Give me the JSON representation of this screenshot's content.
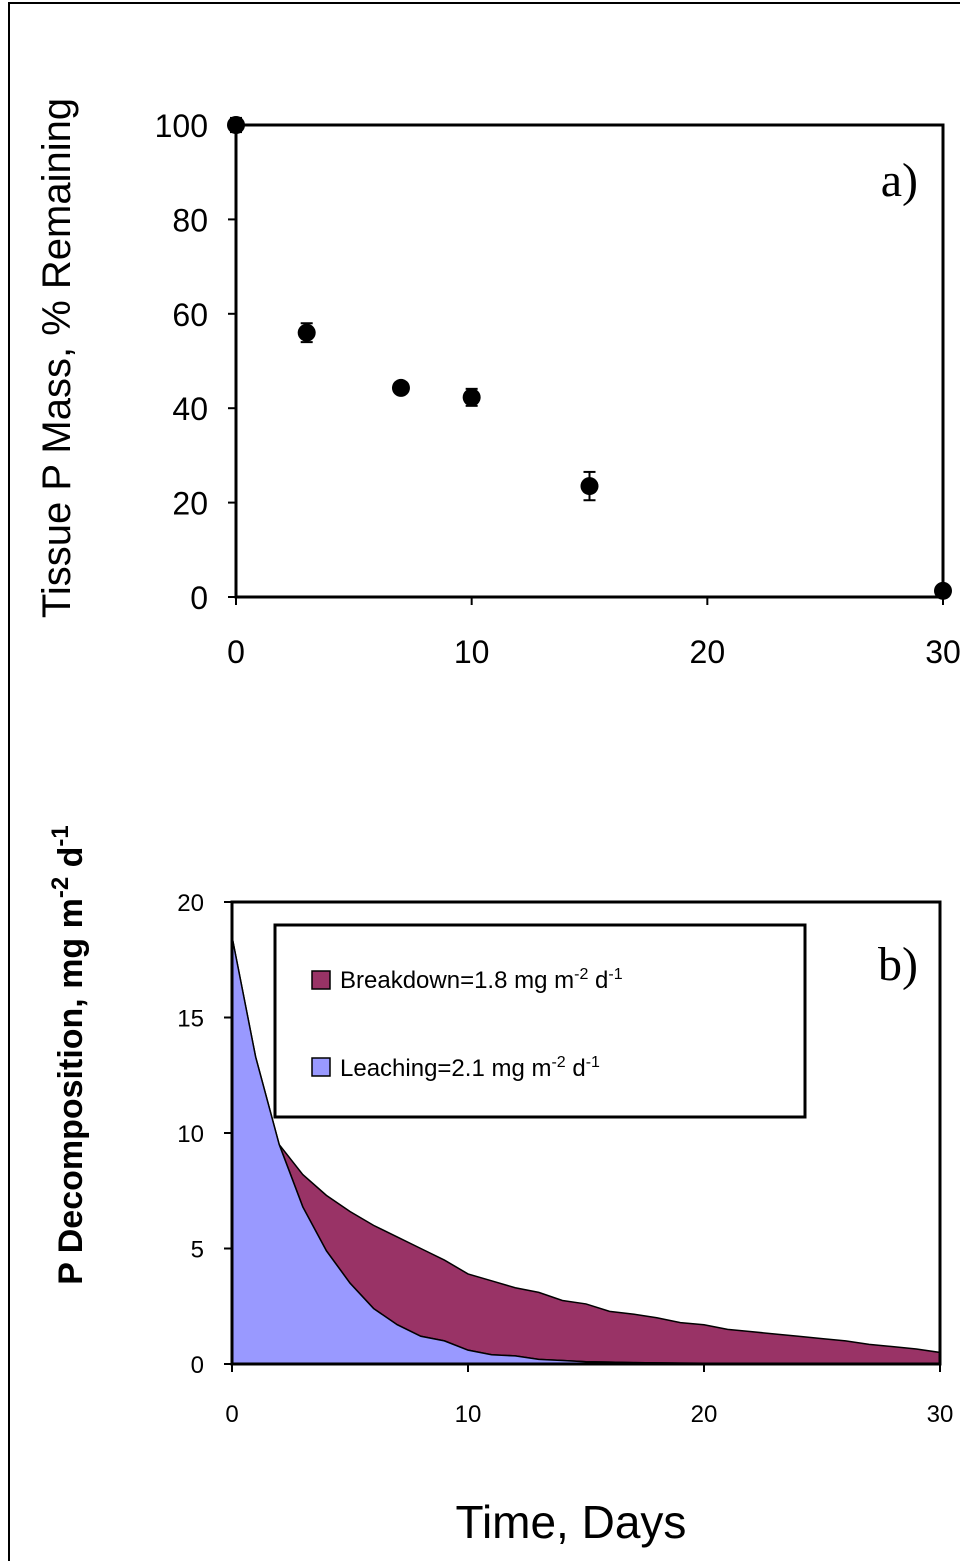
{
  "shared": {
    "xlabel": "Time, Days"
  },
  "chart_data": [
    {
      "id": "a",
      "type": "scatter",
      "panel_label": "a)",
      "ylabel": "Tissue P Mass, % Remaining",
      "xlabel": "",
      "xlim": [
        0,
        30
      ],
      "ylim": [
        0,
        100
      ],
      "xticks": [
        0,
        10,
        20,
        30
      ],
      "yticks": [
        0,
        20,
        40,
        60,
        80,
        100
      ],
      "x_tick_labels": [
        "0",
        "10",
        "20",
        "30"
      ],
      "y_tick_labels": [
        "0",
        "20",
        "40",
        "60",
        "80",
        "100"
      ],
      "grid": false,
      "series": [
        {
          "points": [
            {
              "x": 0,
              "y": 100,
              "err": 1.5
            },
            {
              "x": 3,
              "y": 56,
              "err": 2
            },
            {
              "x": 7,
              "y": 44.3,
              "err": 1
            },
            {
              "x": 10,
              "y": 42.3,
              "err": 1.8
            },
            {
              "x": 15,
              "y": 23.5,
              "err": 3
            },
            {
              "x": 30,
              "y": 1.3,
              "err": 0
            }
          ]
        }
      ]
    },
    {
      "id": "b",
      "type": "area",
      "stacked": true,
      "panel_label": "b)",
      "ylabel_main": "P Decomposition, mg m",
      "ylabel_sup1": "-2",
      "ylabel_mid": " d",
      "ylabel_sup2": "-1",
      "xlabel": "",
      "xlim": [
        0,
        30
      ],
      "ylim": [
        0,
        20
      ],
      "xticks": [
        0,
        10,
        20,
        30
      ],
      "yticks": [
        0,
        5,
        10,
        15,
        20
      ],
      "x_tick_labels": [
        "0",
        "10",
        "20",
        "30"
      ],
      "y_tick_labels": [
        "0",
        "5",
        "10",
        "15",
        "20"
      ],
      "grid": false,
      "legend_position": "top-center",
      "legend": [
        {
          "text": "Breakdown=1.8 mg m",
          "sup1": "-2",
          "mid": " d",
          "sup2": "-1",
          "color": "#993366"
        },
        {
          "text": "Leaching=2.1 mg m",
          "sup1": "-2",
          "mid": " d",
          "sup2": "-1",
          "color": "#9999ff"
        }
      ],
      "x": [
        0,
        1,
        2,
        3,
        4,
        5,
        6,
        7,
        8,
        9,
        10,
        11,
        12,
        13,
        14,
        15,
        16,
        17,
        18,
        19,
        20,
        21,
        22,
        23,
        24,
        25,
        26,
        27,
        28,
        29,
        30
      ],
      "series": [
        {
          "name": "Leaching",
          "color": "#9999ff",
          "values": [
            18.5,
            13.3,
            9.5,
            6.8,
            4.9,
            3.5,
            2.4,
            1.7,
            1.2,
            1.0,
            0.6,
            0.4,
            0.35,
            0.2,
            0.15,
            0.1,
            0.08,
            0.06,
            0.05,
            0.04,
            0.03,
            0.02,
            0.02,
            0.01,
            0.01,
            0.01,
            0.0,
            0.0,
            0.0,
            0.0,
            0.0
          ]
        },
        {
          "name": "Breakdown",
          "color": "#993366",
          "values": [
            0.0,
            0.0,
            0.0,
            1.4,
            2.4,
            3.1,
            3.6,
            3.8,
            3.8,
            3.5,
            3.3,
            3.2,
            2.95,
            2.9,
            2.6,
            2.5,
            2.2,
            2.1,
            1.95,
            1.75,
            1.67,
            1.48,
            1.38,
            1.29,
            1.19,
            1.09,
            1.0,
            0.85,
            0.75,
            0.65,
            0.5
          ]
        }
      ]
    }
  ]
}
